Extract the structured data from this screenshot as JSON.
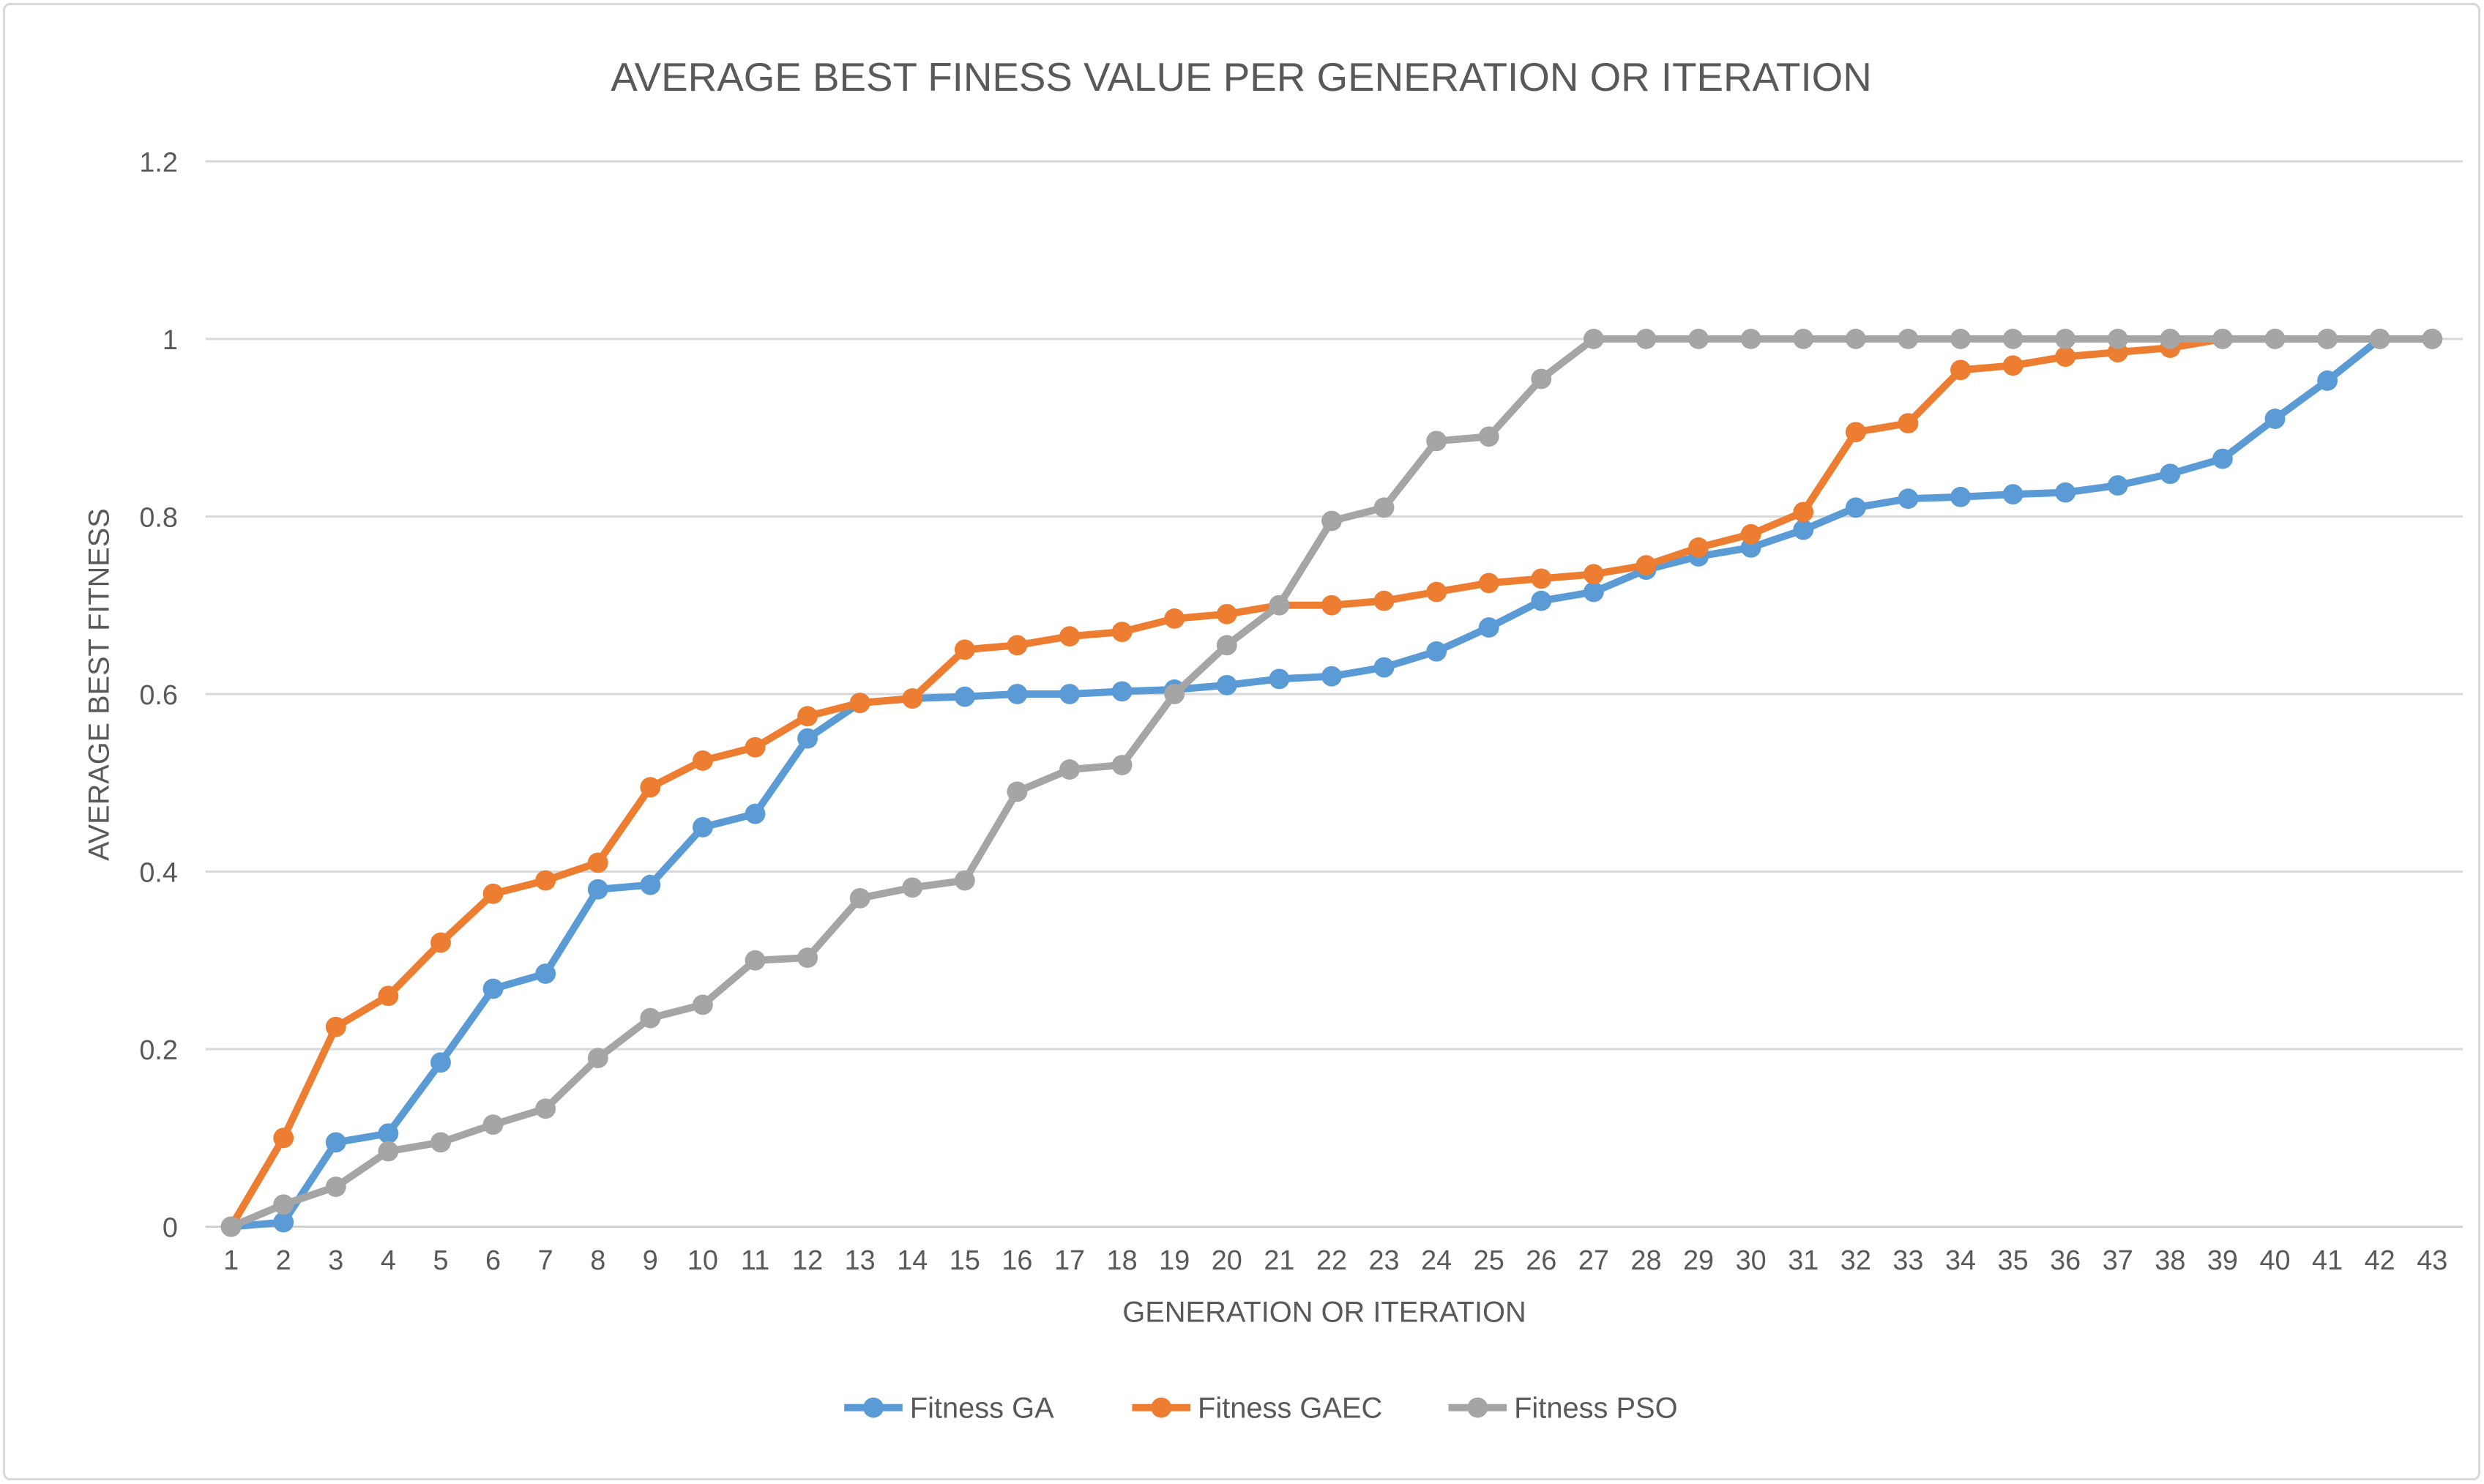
{
  "chart_data": {
    "type": "line",
    "title": "AVERAGE BEST FINESS VALUE PER GENERATION OR ITERATION",
    "xlabel": "GENERATION OR ITERATION",
    "ylabel": "AVERAGE BEST FITNESS",
    "x": [
      1,
      2,
      3,
      4,
      5,
      6,
      7,
      8,
      9,
      10,
      11,
      12,
      13,
      14,
      15,
      16,
      17,
      18,
      19,
      20,
      21,
      22,
      23,
      24,
      25,
      26,
      27,
      28,
      29,
      30,
      31,
      32,
      33,
      34,
      35,
      36,
      37,
      38,
      39,
      40,
      41,
      42,
      43
    ],
    "ylim": [
      0,
      1.2
    ],
    "yticks": [
      0,
      0.2,
      0.4,
      0.6,
      0.8,
      1,
      1.2
    ],
    "ytick_labels": [
      "0",
      "0.2",
      "0.4",
      "0.6",
      "0.8",
      "1",
      "1.2"
    ],
    "grid": "horizontal",
    "legend_position": "bottom",
    "series": [
      {
        "name": "Fitness GA",
        "color": "#5B9BD5",
        "values": [
          0,
          0.005,
          0.095,
          0.105,
          0.185,
          0.268,
          0.285,
          0.38,
          0.385,
          0.45,
          0.465,
          0.55,
          0.59,
          0.595,
          0.597,
          0.6,
          0.6,
          0.603,
          0.605,
          0.61,
          0.617,
          0.62,
          0.63,
          0.648,
          0.675,
          0.705,
          0.715,
          0.74,
          0.755,
          0.765,
          0.785,
          0.81,
          0.82,
          0.822,
          0.825,
          0.827,
          0.835,
          0.848,
          0.865,
          0.91,
          0.953,
          1,
          1
        ]
      },
      {
        "name": "Fitness GAEC",
        "color": "#ED7D31",
        "values": [
          0,
          0.1,
          0.225,
          0.26,
          0.32,
          0.375,
          0.39,
          0.41,
          0.495,
          0.525,
          0.54,
          0.575,
          0.59,
          0.595,
          0.65,
          0.655,
          0.665,
          0.67,
          0.685,
          0.69,
          0.7,
          0.7,
          0.705,
          0.715,
          0.725,
          0.73,
          0.735,
          0.745,
          0.765,
          0.78,
          0.805,
          0.895,
          0.905,
          0.965,
          0.97,
          0.98,
          0.985,
          0.99,
          1,
          1,
          1,
          1,
          1
        ]
      },
      {
        "name": "Fitness PSO",
        "color": "#A5A5A5",
        "values": [
          0,
          0.025,
          0.045,
          0.085,
          0.095,
          0.115,
          0.133,
          0.19,
          0.235,
          0.25,
          0.3,
          0.303,
          0.37,
          0.382,
          0.39,
          0.49,
          0.515,
          0.52,
          0.6,
          0.655,
          0.7,
          0.795,
          0.81,
          0.885,
          0.89,
          0.955,
          1,
          1,
          1,
          1,
          1,
          1,
          1,
          1,
          1,
          1,
          1,
          1,
          1,
          1,
          1,
          1,
          1
        ]
      }
    ],
    "text_color": "#595959",
    "grid_color": "#D9D9D9",
    "axis_line_color": "#D0D0D0"
  }
}
